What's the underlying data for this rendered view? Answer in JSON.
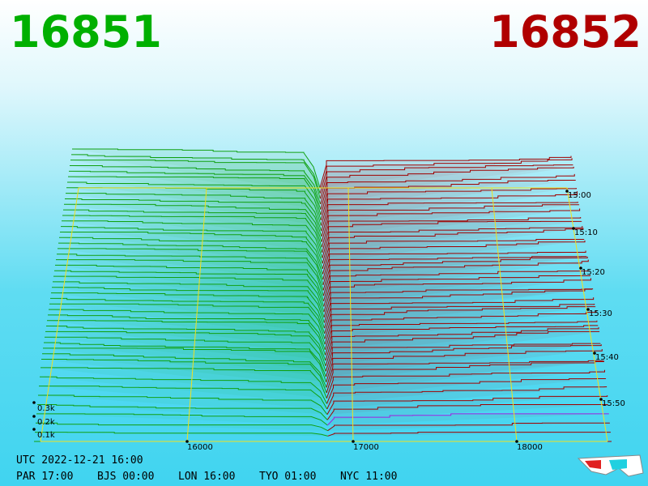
{
  "header": {
    "bid": "16851",
    "ask": "16852"
  },
  "axes": {
    "depth_labels": [
      "0.3k",
      "0.2k",
      "0.1k"
    ],
    "price_labels": [
      "16000",
      "17000",
      "18000"
    ],
    "time_labels": [
      "15:00",
      "15:10",
      "15:20",
      "15:30",
      "15:40",
      "15:50"
    ]
  },
  "footer": {
    "utc": "UTC 2022-12-21 16:00",
    "clocks": [
      "PAR 17:00",
      "BJS 00:00",
      "LON 16:00",
      "TYO 01:00",
      "NYC 11:00"
    ]
  }
}
